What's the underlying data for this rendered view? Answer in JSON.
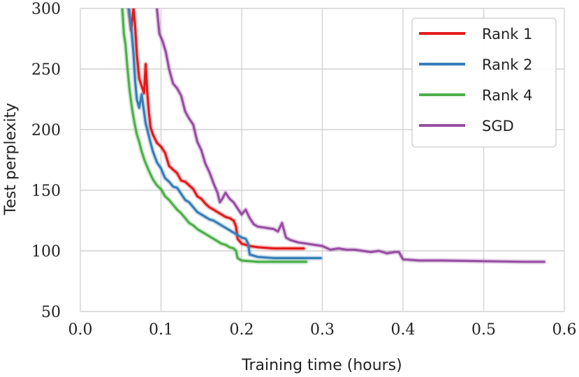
{
  "chart_data": {
    "type": "line",
    "xlabel": "Training time (hours)",
    "ylabel": "Test perplexity",
    "xlim": [
      0.0,
      0.6
    ],
    "ylim": [
      50,
      300
    ],
    "x_ticks": [
      "0.0",
      "0.1",
      "0.2",
      "0.3",
      "0.4",
      "0.5",
      "0.6"
    ],
    "y_ticks": [
      "50",
      "100",
      "150",
      "200",
      "250",
      "300"
    ],
    "grid": true,
    "legend_position": "top-right",
    "series": [
      {
        "name": "Rank 1",
        "color": "#e41a1c",
        "points": [
          [
            0.06,
            300
          ],
          [
            0.063,
            282
          ],
          [
            0.066,
            300
          ],
          [
            0.068,
            285
          ],
          [
            0.07,
            262
          ],
          [
            0.073,
            242
          ],
          [
            0.076,
            236
          ],
          [
            0.079,
            230
          ],
          [
            0.081,
            254
          ],
          [
            0.083,
            230
          ],
          [
            0.085,
            214
          ],
          [
            0.087,
            202
          ],
          [
            0.09,
            196
          ],
          [
            0.095,
            189
          ],
          [
            0.1,
            186
          ],
          [
            0.105,
            181
          ],
          [
            0.11,
            170
          ],
          [
            0.115,
            167
          ],
          [
            0.12,
            164
          ],
          [
            0.125,
            158
          ],
          [
            0.13,
            157
          ],
          [
            0.135,
            154
          ],
          [
            0.14,
            151
          ],
          [
            0.145,
            145
          ],
          [
            0.15,
            143
          ],
          [
            0.155,
            139
          ],
          [
            0.16,
            136
          ],
          [
            0.165,
            134
          ],
          [
            0.17,
            132
          ],
          [
            0.175,
            130
          ],
          [
            0.18,
            128
          ],
          [
            0.185,
            127
          ],
          [
            0.19,
            125
          ],
          [
            0.193,
            120
          ],
          [
            0.195,
            110
          ],
          [
            0.2,
            106
          ],
          [
            0.21,
            104
          ],
          [
            0.22,
            103
          ],
          [
            0.24,
            102
          ],
          [
            0.26,
            102
          ],
          [
            0.277,
            102
          ]
        ]
      },
      {
        "name": "Rank 2",
        "color": "#377eb8",
        "points": [
          [
            0.06,
            300
          ],
          [
            0.063,
            285
          ],
          [
            0.066,
            262
          ],
          [
            0.068,
            240
          ],
          [
            0.07,
            225
          ],
          [
            0.073,
            218
          ],
          [
            0.076,
            229
          ],
          [
            0.079,
            215
          ],
          [
            0.081,
            205
          ],
          [
            0.083,
            200
          ],
          [
            0.086,
            192
          ],
          [
            0.09,
            182
          ],
          [
            0.095,
            173
          ],
          [
            0.1,
            168
          ],
          [
            0.105,
            160
          ],
          [
            0.11,
            157
          ],
          [
            0.115,
            153
          ],
          [
            0.12,
            152
          ],
          [
            0.125,
            147
          ],
          [
            0.13,
            142
          ],
          [
            0.135,
            140
          ],
          [
            0.14,
            136
          ],
          [
            0.145,
            132
          ],
          [
            0.15,
            130
          ],
          [
            0.155,
            128
          ],
          [
            0.16,
            126
          ],
          [
            0.165,
            125
          ],
          [
            0.17,
            123
          ],
          [
            0.175,
            121
          ],
          [
            0.18,
            119
          ],
          [
            0.185,
            117
          ],
          [
            0.19,
            115
          ],
          [
            0.195,
            113
          ],
          [
            0.2,
            111
          ],
          [
            0.205,
            110
          ],
          [
            0.208,
            106
          ],
          [
            0.21,
            97
          ],
          [
            0.22,
            95
          ],
          [
            0.24,
            94
          ],
          [
            0.27,
            94
          ],
          [
            0.298,
            94
          ]
        ]
      },
      {
        "name": "Rank 4",
        "color": "#4daf4a",
        "points": [
          [
            0.052,
            300
          ],
          [
            0.054,
            279
          ],
          [
            0.056,
            270
          ],
          [
            0.058,
            254
          ],
          [
            0.061,
            233
          ],
          [
            0.064,
            218
          ],
          [
            0.067,
            206
          ],
          [
            0.07,
            196
          ],
          [
            0.073,
            190
          ],
          [
            0.076,
            182
          ],
          [
            0.08,
            174
          ],
          [
            0.085,
            166
          ],
          [
            0.09,
            159
          ],
          [
            0.095,
            154
          ],
          [
            0.1,
            151
          ],
          [
            0.105,
            145
          ],
          [
            0.11,
            142
          ],
          [
            0.115,
            138
          ],
          [
            0.12,
            134
          ],
          [
            0.125,
            131
          ],
          [
            0.13,
            127
          ],
          [
            0.135,
            123
          ],
          [
            0.14,
            121
          ],
          [
            0.145,
            118
          ],
          [
            0.15,
            116
          ],
          [
            0.155,
            114
          ],
          [
            0.16,
            112
          ],
          [
            0.165,
            110
          ],
          [
            0.17,
            108
          ],
          [
            0.175,
            106
          ],
          [
            0.18,
            105
          ],
          [
            0.185,
            103
          ],
          [
            0.19,
            102
          ],
          [
            0.193,
            100
          ],
          [
            0.195,
            94
          ],
          [
            0.2,
            92
          ],
          [
            0.22,
            91
          ],
          [
            0.26,
            91
          ],
          [
            0.28,
            91
          ]
        ]
      },
      {
        "name": "SGD",
        "color": "#984ea3",
        "points": [
          [
            0.095,
            300
          ],
          [
            0.098,
            279
          ],
          [
            0.102,
            273
          ],
          [
            0.106,
            264
          ],
          [
            0.11,
            250
          ],
          [
            0.115,
            238
          ],
          [
            0.12,
            234
          ],
          [
            0.125,
            228
          ],
          [
            0.13,
            215
          ],
          [
            0.135,
            209
          ],
          [
            0.14,
            204
          ],
          [
            0.145,
            190
          ],
          [
            0.15,
            183
          ],
          [
            0.155,
            172
          ],
          [
            0.16,
            165
          ],
          [
            0.165,
            156
          ],
          [
            0.17,
            148
          ],
          [
            0.173,
            140
          ],
          [
            0.176,
            143
          ],
          [
            0.18,
            148
          ],
          [
            0.185,
            143
          ],
          [
            0.19,
            140
          ],
          [
            0.195,
            135
          ],
          [
            0.2,
            130
          ],
          [
            0.205,
            134
          ],
          [
            0.21,
            127
          ],
          [
            0.215,
            122
          ],
          [
            0.22,
            120
          ],
          [
            0.23,
            119
          ],
          [
            0.24,
            118
          ],
          [
            0.245,
            116
          ],
          [
            0.25,
            123
          ],
          [
            0.255,
            111
          ],
          [
            0.26,
            109
          ],
          [
            0.27,
            107
          ],
          [
            0.28,
            106
          ],
          [
            0.29,
            105
          ],
          [
            0.3,
            104
          ],
          [
            0.31,
            101
          ],
          [
            0.32,
            102
          ],
          [
            0.33,
            101
          ],
          [
            0.34,
            101
          ],
          [
            0.35,
            100
          ],
          [
            0.36,
            99
          ],
          [
            0.37,
            100
          ],
          [
            0.38,
            98
          ],
          [
            0.39,
            99
          ],
          [
            0.395,
            99
          ],
          [
            0.4,
            93
          ],
          [
            0.42,
            92
          ],
          [
            0.45,
            92
          ],
          [
            0.5,
            91.5
          ],
          [
            0.55,
            91
          ],
          [
            0.575,
            91
          ]
        ]
      }
    ]
  }
}
